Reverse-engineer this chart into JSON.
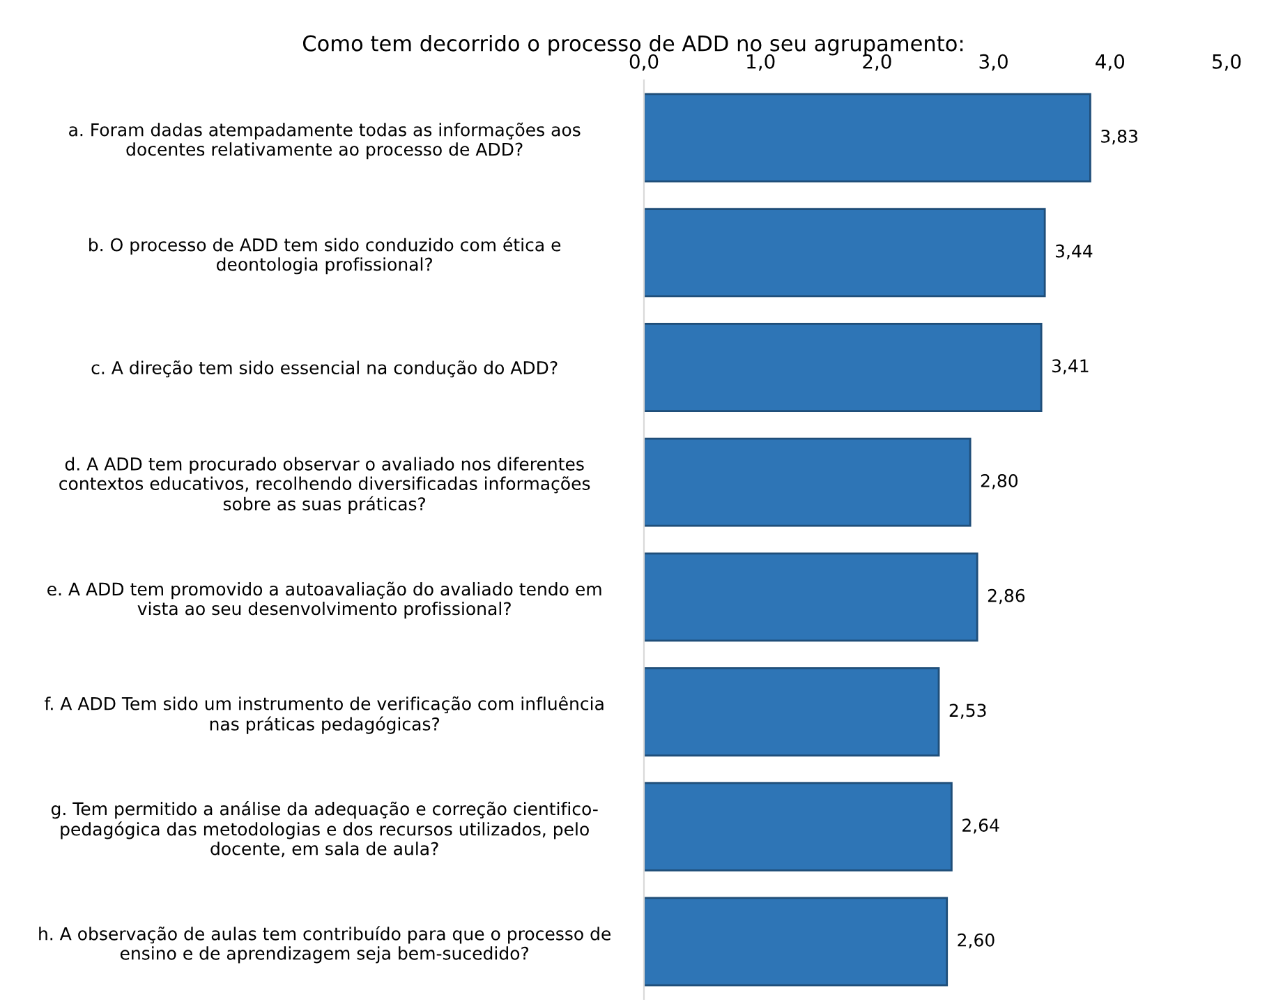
{
  "chart_data": {
    "type": "bar",
    "orientation": "horizontal",
    "title": "Como tem decorrido o processo de ADD no seu agrupamento:",
    "categories": [
      "a. Foram dadas atempadamente todas as informações aos\ndocentes relativamente ao processo de ADD?",
      "b. O processo de ADD tem sido conduzido com ética e\ndeontologia profissional?",
      "c. A direção tem sido essencial na condução do ADD?",
      "d. A ADD tem procurado observar o avaliado nos diferentes\ncontextos educativos, recolhendo diversificadas informações\nsobre as suas práticas?",
      "e. A ADD tem promovido a autoavaliação do avaliado tendo em\nvista ao seu desenvolvimento profissional?",
      "f. A ADD Tem sido um instrumento de verificação com influência\nnas práticas pedagógicas?",
      "g. Tem permitido a análise da adequação e correção cientifico-\npedagógica das metodologias e dos recursos utilizados, pelo\ndocente, em sala de aula?",
      "h. A observação de aulas tem contribuído para que o processo de\nensino e de aprendizagem seja bem-sucedido?"
    ],
    "values": [
      3.83,
      3.44,
      3.41,
      2.8,
      2.86,
      2.53,
      2.64,
      2.6
    ],
    "value_labels": [
      "3,83",
      "3,44",
      "3,41",
      "2,80",
      "2,86",
      "2,53",
      "2,64",
      "2,60"
    ],
    "color": "#2e75b6",
    "xlim": [
      0,
      5
    ],
    "xticks": [
      {
        "value": 0,
        "label": "0,0"
      },
      {
        "value": 1,
        "label": "1,0"
      },
      {
        "value": 2,
        "label": "2,0"
      },
      {
        "value": 3,
        "label": "3,0"
      },
      {
        "value": 4,
        "label": "4,0"
      },
      {
        "value": 5,
        "label": "5,0"
      }
    ],
    "grid": false,
    "legend": false
  }
}
